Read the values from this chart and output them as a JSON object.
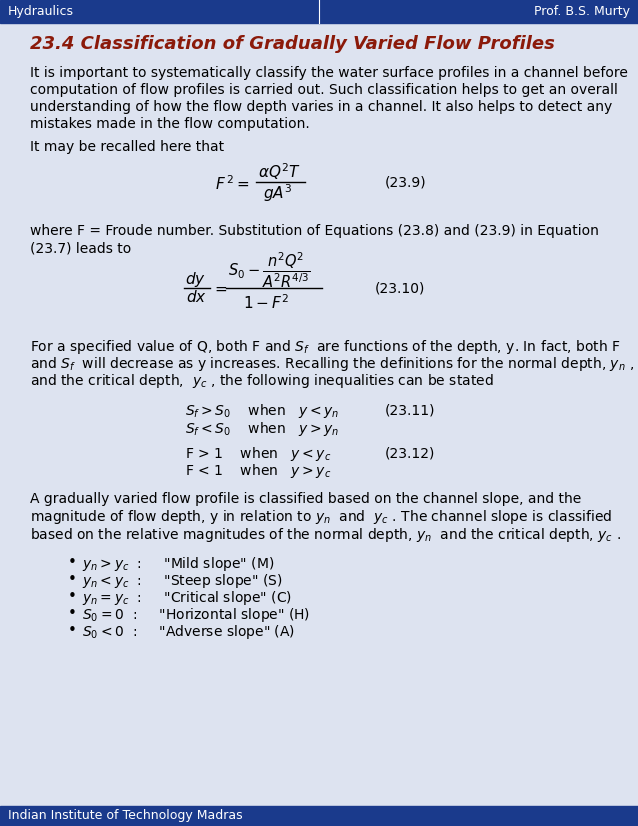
{
  "header_bg": "#1a3a8c",
  "header_text_color": "#ffffff",
  "header_left": "Hydraulics",
  "header_right": "Prof. B.S. Murty",
  "footer_bg": "#1a3a8c",
  "footer_text_color": "#ffffff",
  "footer_text": "Indian Institute of Technology Madras",
  "page_bg": "#dde3f0",
  "title": "23.4 Classification of Gradually Varied Flow Profiles",
  "title_color": "#8b1a0a",
  "body_text_color": "#000000",
  "para1": "It is important to systematically classify the water surface profiles in a channel before",
  "para1b": "computation of flow profiles is carried out. Such classification helps to get an overall",
  "para1c": "understanding of how the flow depth varies in a channel. It also helps to detect any",
  "para1d": "mistakes made in the flow computation.",
  "para2": "It may be recalled here that",
  "eq1_label": "(23.9)",
  "eq2_label": "(23.10)",
  "eq3_label": "(23.11)",
  "eq4_label": "(23.12)",
  "para3a": "For a specified value of Q, both F and $S_f$  are functions of the depth, y. In fact, both F",
  "para3b": "and $S_f$  will decrease as y increases. Recalling the definitions for the normal depth, $y_n$ ,",
  "para3c": "and the critical depth,  $y_c$ , the following inequalities can be stated",
  "ineq1": "$S_f > S_0$    when   $y < y_n$",
  "ineq2": "$S_f < S_0$    when   $y > y_n$",
  "ineq3": "F > 1    when   $y < y_c$",
  "ineq4": "F < 1    when   $y > y_c$",
  "para4a": "A gradually varied flow profile is classified based on the channel slope, and the",
  "para4b": "magnitude of flow depth, y in relation to $y_n$  and  $y_c$ . The channel slope is classified",
  "para4c": "based on the relative magnitudes of the normal depth, $y_n$  and the critical depth, $y_c$ .",
  "bullet1": "$y_n > y_c$  :     \"Mild slope\" (M)",
  "bullet2": "$y_n < y_c$  :     \"Steep slope\" (S)",
  "bullet3": "$y_n = y_c$  :     \"Critical slope\" (C)",
  "bullet4": "$S_0 = 0$  :     \"Horizontal slope\" (H)",
  "bullet5": "$S_0 < 0$  :     \"Adverse slope\" (A)"
}
